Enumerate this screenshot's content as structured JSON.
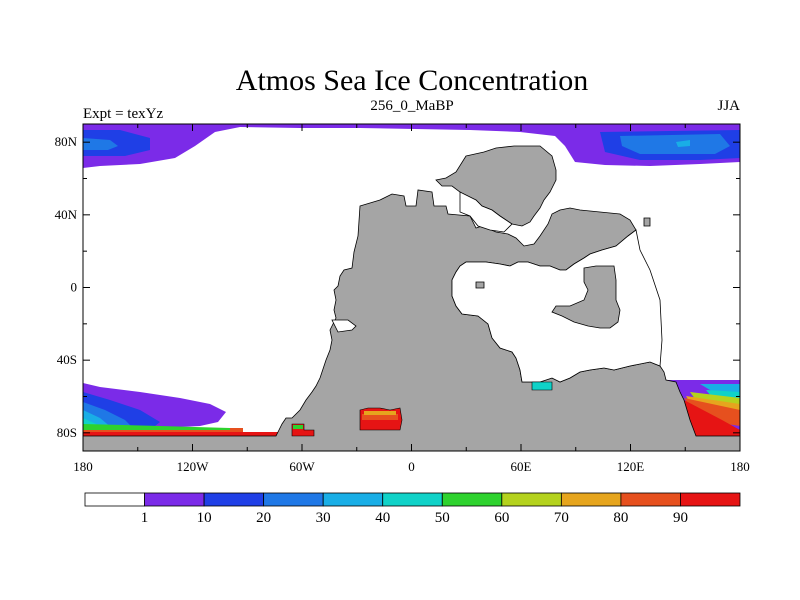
{
  "title": "Atmos Sea Ice Concentration",
  "subtitle_left": "Expt = texYz",
  "subtitle_center": "256_0_MaBP",
  "subtitle_right": "JJA",
  "map": {
    "projection": "cylindrical-equidistant",
    "lon_range": [
      -180,
      180
    ],
    "lat_range": [
      -90,
      90
    ],
    "land_color": "#a5a5a5",
    "ocean_color": "#ffffff",
    "lat_ticks": [
      {
        "value": 80,
        "label": "80N"
      },
      {
        "value": 40,
        "label": "40N"
      },
      {
        "value": 0,
        "label": "0"
      },
      {
        "value": -40,
        "label": "40S"
      },
      {
        "value": -80,
        "label": "80S"
      }
    ],
    "lon_ticks": [
      {
        "value": -180,
        "label": "180"
      },
      {
        "value": -120,
        "label": "120W"
      },
      {
        "value": -60,
        "label": "60W"
      },
      {
        "value": 0,
        "label": "0"
      },
      {
        "value": 60,
        "label": "60E"
      },
      {
        "value": 120,
        "label": "120E"
      },
      {
        "value": 180,
        "label": "180"
      }
    ]
  },
  "colorbar": {
    "colors": [
      "#ffffff",
      "#7b2be8",
      "#1f3fe6",
      "#1f78e6",
      "#19aee6",
      "#10d2c8",
      "#2ed22e",
      "#b4d21e",
      "#e6a51e",
      "#e6501e",
      "#e61414"
    ],
    "labels": [
      "1",
      "10",
      "20",
      "30",
      "40",
      "50",
      "60",
      "70",
      "80",
      "90"
    ]
  }
}
